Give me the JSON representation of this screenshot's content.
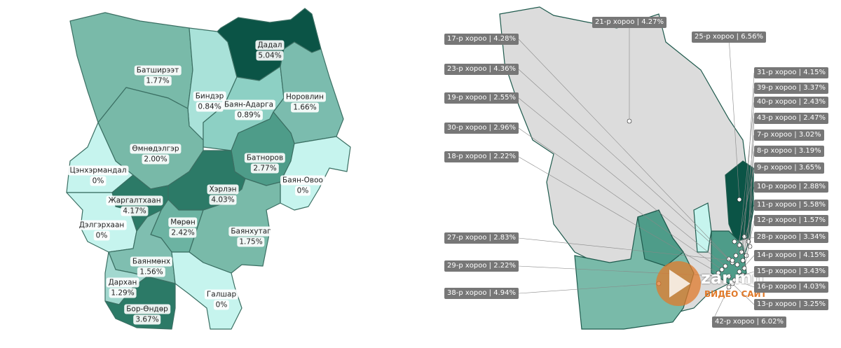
{
  "left_map": {
    "regions": [
      {
        "name": "Дадал",
        "share": "5.04%"
      },
      {
        "name": "Батширээт",
        "share": "1.77%"
      },
      {
        "name": "Биндэр",
        "share": "0.84%"
      },
      {
        "name": "Баян-Адарга",
        "share": "0.89%"
      },
      {
        "name": "Норовлин",
        "share": "1.66%"
      },
      {
        "name": "Өмнөдэлгэр",
        "share": "2.00%"
      },
      {
        "name": "Батноров",
        "share": "2.77%"
      },
      {
        "name": "Цэнхэрмандал",
        "share": "0%"
      },
      {
        "name": "Баян-Овоо",
        "share": "0%"
      },
      {
        "name": "Хэрлэн",
        "share": "4.03%"
      },
      {
        "name": "Жаргалтхаан",
        "share": "4.17%"
      },
      {
        "name": "Дэлгэрхаан",
        "share": "0%"
      },
      {
        "name": "Мөрөн",
        "share": "2.42%"
      },
      {
        "name": "Баянхутаг",
        "share": "1.75%"
      },
      {
        "name": "Баянмөнх",
        "share": "1.56%"
      },
      {
        "name": "Дархан",
        "share": "1.29%"
      },
      {
        "name": "Бор-Өндөр",
        "share": "3.67%"
      },
      {
        "name": "Галшар",
        "share": "0%"
      }
    ]
  },
  "right_map": {
    "labels": [
      "21-р хороо | 4.27%",
      "25-р хороо | 6.56%",
      "17-р хороо | 4.28%",
      "23-р хороо | 4.36%",
      "19-р хороо | 2.55%",
      "30-р хороо | 2.96%",
      "18-р хороо | 2.22%",
      "27-р хороо | 2.83%",
      "29-р хороо | 2.22%",
      "38-р хороо | 4.94%",
      "31-р хороо | 4.15%",
      "39-р хороо | 3.37%",
      "40-р хороо | 2.43%",
      "43-р хороо | 2.47%",
      "7-р хороо | 3.02%",
      "8-р хороо | 3.19%",
      "9-р хороо | 3.65%",
      "10-р хороо | 2.88%",
      "11-р хороо | 5.58%",
      "12-р хороо | 1.57%",
      "28-р хороо | 3.34%",
      "14-р хороо | 4.15%",
      "15-р хороо | 3.43%",
      "16-р хороо | 4.03%",
      "13-р хороо | 3.25%",
      "42-р хороо | 6.02%"
    ]
  },
  "watermark": {
    "site": "zar.mn",
    "tagline": "ВИДЕО САЙТ"
  }
}
